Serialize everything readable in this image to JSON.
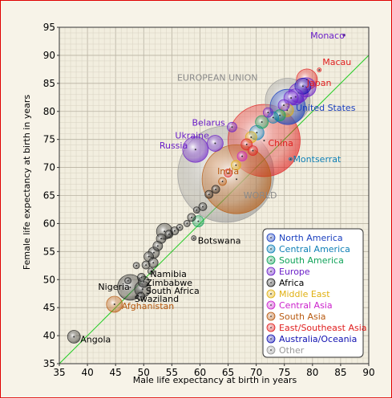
{
  "chart_data": {
    "type": "scatter",
    "xlabel": "Male life expectancy at birth in years",
    "ylabel": "Female life expectancy at birth in years",
    "xlim": [
      35,
      90
    ],
    "ylim": [
      35,
      95
    ],
    "x_ticks": [
      35,
      40,
      45,
      50,
      55,
      60,
      65,
      70,
      75,
      80,
      85,
      90
    ],
    "y_ticks": [
      35,
      40,
      45,
      50,
      55,
      60,
      65,
      70,
      75,
      80,
      85,
      90,
      95
    ],
    "grid": true,
    "reference_line": "y = x",
    "legend_position": "lower-right",
    "legend": [
      {
        "name": "North America",
        "color": "#1a3fbf"
      },
      {
        "name": "Central America",
        "color": "#0e7fb5"
      },
      {
        "name": "South America",
        "color": "#11a35a"
      },
      {
        "name": "Europe",
        "color": "#6a1ec8"
      },
      {
        "name": "Africa",
        "color": "#222222"
      },
      {
        "name": "Middle East",
        "color": "#e0b010"
      },
      {
        "name": "Central Asia",
        "color": "#cc22cc"
      },
      {
        "name": "South Asia",
        "color": "#b85a10"
      },
      {
        "name": "East/Southeast Asia",
        "color": "#e02020"
      },
      {
        "name": "Australia/Oceania",
        "color": "#1010b0"
      },
      {
        "name": "Other",
        "color": "#999999"
      }
    ],
    "points": [
      {
        "label": "Monaco",
        "x": 85.6,
        "y": 93.6,
        "r": 1.5,
        "region": "Europe"
      },
      {
        "label": "Macau",
        "x": 81.2,
        "y": 87.4,
        "r": 2.5,
        "region": "East/Southeast Asia"
      },
      {
        "label": "Japan",
        "x": 79.0,
        "y": 85.7,
        "r": 13,
        "region": "East/Southeast Asia"
      },
      {
        "label": "EUROPEAN UNION",
        "x": 75.6,
        "y": 81.9,
        "r": 28,
        "region": "Other"
      },
      {
        "label": "United States",
        "x": 75.6,
        "y": 80.8,
        "r": 22,
        "region": "North America"
      },
      {
        "label": "China",
        "x": 71.4,
        "y": 74.8,
        "r": 45,
        "region": "East/Southeast Asia"
      },
      {
        "label": "Belarus",
        "x": 65.7,
        "y": 77.2,
        "r": 6,
        "region": "Europe"
      },
      {
        "label": "Ukraine",
        "x": 62.7,
        "y": 74.3,
        "r": 10,
        "region": "Europe"
      },
      {
        "label": "Russia",
        "x": 59.2,
        "y": 73.2,
        "r": 16,
        "region": "Europe"
      },
      {
        "label": "Montserrat",
        "x": 76.1,
        "y": 71.5,
        "r": 2,
        "region": "Central America"
      },
      {
        "label": "India",
        "x": 66.5,
        "y": 67.9,
        "r": 43,
        "region": "South Asia"
      },
      {
        "label": "WORLD",
        "x": 64.6,
        "y": 68.8,
        "r": 60,
        "region": "Other"
      },
      {
        "label": "Botswana",
        "x": 58.9,
        "y": 57.4,
        "r": 3,
        "region": "Africa"
      },
      {
        "label": "Namibia",
        "x": 51.3,
        "y": 51.5,
        "r": 4,
        "region": "Africa"
      },
      {
        "label": "Zimbabwe",
        "x": 50.0,
        "y": 49.6,
        "r": 7,
        "region": "Africa"
      },
      {
        "label": "South Africa",
        "x": 49.8,
        "y": 48.3,
        "r": 10,
        "region": "Africa"
      },
      {
        "label": "Nigeria",
        "x": 47.6,
        "y": 48.6,
        "r": 16,
        "region": "Africa"
      },
      {
        "label": "Swaziland",
        "x": 49.5,
        "y": 47.0,
        "r": 5,
        "region": "Africa"
      },
      {
        "label": "Afghanistan",
        "x": 44.8,
        "y": 45.6,
        "r": 10,
        "region": "South Asia"
      },
      {
        "label": "Angola",
        "x": 37.6,
        "y": 39.8,
        "r": 8,
        "region": "Africa"
      },
      {
        "label": "",
        "x": 78.9,
        "y": 84.3,
        "r": 12,
        "region": "Europe"
      },
      {
        "label": "",
        "x": 77.5,
        "y": 83.3,
        "r": 12,
        "region": "Europe"
      },
      {
        "label": "",
        "x": 78.3,
        "y": 84.5,
        "r": 10,
        "region": "Australia/Oceania"
      },
      {
        "label": "",
        "x": 77.0,
        "y": 82.6,
        "r": 10,
        "region": "Europe"
      },
      {
        "label": "",
        "x": 76.2,
        "y": 82.4,
        "r": 9,
        "region": "Europe"
      },
      {
        "label": "",
        "x": 74.9,
        "y": 81.1,
        "r": 7,
        "region": "Europe"
      },
      {
        "label": "",
        "x": 75.5,
        "y": 80.2,
        "r": 8,
        "region": "Middle East"
      },
      {
        "label": "",
        "x": 74.2,
        "y": 79.3,
        "r": 7,
        "region": "South America"
      },
      {
        "label": "",
        "x": 73.0,
        "y": 78.9,
        "r": 7,
        "region": "Central America"
      },
      {
        "label": "",
        "x": 72.1,
        "y": 79.8,
        "r": 6,
        "region": "Europe"
      },
      {
        "label": "",
        "x": 71.0,
        "y": 78.1,
        "r": 8,
        "region": "South America"
      },
      {
        "label": "",
        "x": 70.1,
        "y": 76.2,
        "r": 9,
        "region": "Central America"
      },
      {
        "label": "",
        "x": 69.1,
        "y": 75.4,
        "r": 7,
        "region": "Middle East"
      },
      {
        "label": "",
        "x": 68.3,
        "y": 74.1,
        "r": 7,
        "region": "East/Southeast Asia"
      },
      {
        "label": "",
        "x": 69.4,
        "y": 73.0,
        "r": 6,
        "region": "East/Southeast Asia"
      },
      {
        "label": "",
        "x": 67.5,
        "y": 72.0,
        "r": 6,
        "region": "Central Asia"
      },
      {
        "label": "",
        "x": 66.4,
        "y": 70.4,
        "r": 6,
        "region": "Middle East"
      },
      {
        "label": "",
        "x": 65.0,
        "y": 69.0,
        "r": 5,
        "region": "East/Southeast Asia"
      },
      {
        "label": "",
        "x": 64.0,
        "y": 67.5,
        "r": 5,
        "region": "South Asia"
      },
      {
        "label": "",
        "x": 62.8,
        "y": 66.1,
        "r": 5,
        "region": "Africa"
      },
      {
        "label": "",
        "x": 61.6,
        "y": 65.2,
        "r": 5,
        "region": "Africa"
      },
      {
        "label": "",
        "x": 60.5,
        "y": 63.0,
        "r": 5,
        "region": "Africa"
      },
      {
        "label": "",
        "x": 59.4,
        "y": 62.4,
        "r": 4,
        "region": "Africa"
      },
      {
        "label": "",
        "x": 58.5,
        "y": 61.1,
        "r": 5,
        "region": "Africa"
      },
      {
        "label": "",
        "x": 57.7,
        "y": 60.0,
        "r": 4,
        "region": "Africa"
      },
      {
        "label": "",
        "x": 59.7,
        "y": 60.4,
        "r": 7,
        "region": "South America"
      },
      {
        "label": "",
        "x": 56.4,
        "y": 59.3,
        "r": 4,
        "region": "Africa"
      },
      {
        "label": "",
        "x": 55.5,
        "y": 58.7,
        "r": 5,
        "region": "Africa"
      },
      {
        "label": "",
        "x": 54.5,
        "y": 58.1,
        "r": 5,
        "region": "Africa"
      },
      {
        "label": "",
        "x": 53.7,
        "y": 58.6,
        "r": 10,
        "region": "Africa"
      },
      {
        "label": "",
        "x": 53.1,
        "y": 57.3,
        "r": 6,
        "region": "Africa"
      },
      {
        "label": "",
        "x": 52.5,
        "y": 56.0,
        "r": 6,
        "region": "Africa"
      },
      {
        "label": "",
        "x": 51.8,
        "y": 54.8,
        "r": 7,
        "region": "Africa"
      },
      {
        "label": "",
        "x": 50.9,
        "y": 54.1,
        "r": 6,
        "region": "Africa"
      },
      {
        "label": "",
        "x": 51.7,
        "y": 53.0,
        "r": 6,
        "region": "Africa"
      },
      {
        "label": "",
        "x": 50.4,
        "y": 52.6,
        "r": 5,
        "region": "Africa"
      },
      {
        "label": "",
        "x": 48.7,
        "y": 52.5,
        "r": 4,
        "region": "Africa"
      },
      {
        "label": "",
        "x": 49.6,
        "y": 50.4,
        "r": 5,
        "region": "Africa"
      },
      {
        "label": "",
        "x": 47.2,
        "y": 49.8,
        "r": 4,
        "region": "Africa"
      }
    ]
  }
}
